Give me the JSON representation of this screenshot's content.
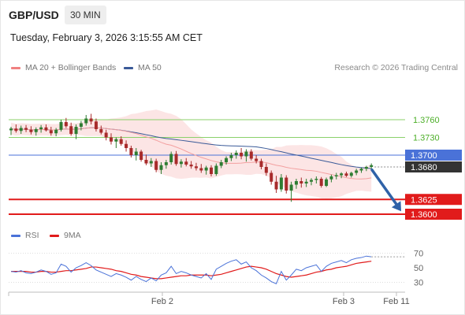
{
  "header": {
    "symbol": "GBP/USD",
    "timeframe": "30 MIN",
    "datetime": "Tuesday, February 3, 2026 3:15:55 AM CET",
    "credit": "Research © 2026 Trading Central"
  },
  "legend": {
    "main": [
      {
        "label": "MA 20 + Bollinger Bands",
        "color": "#f08080"
      },
      {
        "label": "MA 50",
        "color": "#3a5a98"
      }
    ],
    "rsi": [
      {
        "label": "RSI",
        "color": "#4a72d8"
      },
      {
        "label": "9MA",
        "color": "#e11b1b"
      }
    ]
  },
  "colors": {
    "bull": "#2e7d32",
    "bear": "#a82b2b",
    "green_level": "#8bd16a",
    "blue_level": "#4a72d8",
    "red_level": "#e11b1b",
    "bb_fill": "#fbe0e0",
    "ma20": "#f3a0a0",
    "ma50": "#3a5a98",
    "arrow": "#2f62a8"
  },
  "chart_data": [
    {
      "type": "candlestick",
      "title": "GBP/USD 30 MIN",
      "xlabel": "",
      "ylabel": "",
      "x_ticks": [
        "Feb 2",
        "Feb 3",
        "Feb 11"
      ],
      "ylim": [
        1.357,
        1.381
      ],
      "levels": [
        {
          "value": 1.376,
          "label": "1.3760",
          "kind": "resistance",
          "style": "green"
        },
        {
          "value": 1.373,
          "label": "1.3730",
          "kind": "resistance",
          "style": "green"
        },
        {
          "value": 1.37,
          "label": "1.3700",
          "kind": "pivot",
          "style": "blue"
        },
        {
          "value": 1.3625,
          "label": "1.3625",
          "kind": "support",
          "style": "red"
        },
        {
          "value": 1.36,
          "label": "1.3600",
          "kind": "support",
          "style": "red"
        }
      ],
      "last_price": {
        "value": 1.368,
        "label": "1.3680"
      },
      "forecast": {
        "from": 1.3675,
        "to": 1.3605,
        "direction": "down"
      },
      "candles": [
        [
          1.3742,
          1.3748,
          1.3734,
          1.3745
        ],
        [
          1.3745,
          1.3752,
          1.3738,
          1.3741
        ],
        [
          1.3741,
          1.375,
          1.3736,
          1.3746
        ],
        [
          1.3746,
          1.3751,
          1.3739,
          1.3743
        ],
        [
          1.3743,
          1.3749,
          1.3735,
          1.3739
        ],
        [
          1.3739,
          1.3747,
          1.3733,
          1.3744
        ],
        [
          1.3744,
          1.3751,
          1.3738,
          1.3747
        ],
        [
          1.3747,
          1.3752,
          1.374,
          1.3742
        ],
        [
          1.3742,
          1.3748,
          1.3733,
          1.3737
        ],
        [
          1.3737,
          1.3746,
          1.3732,
          1.3743
        ],
        [
          1.3743,
          1.376,
          1.374,
          1.3756
        ],
        [
          1.3756,
          1.3763,
          1.3746,
          1.3749
        ],
        [
          1.3749,
          1.3755,
          1.3733,
          1.3736
        ],
        [
          1.3736,
          1.3752,
          1.3727,
          1.3748
        ],
        [
          1.3748,
          1.3758,
          1.3742,
          1.3754
        ],
        [
          1.3754,
          1.3768,
          1.375,
          1.3762
        ],
        [
          1.3762,
          1.377,
          1.3752,
          1.3757
        ],
        [
          1.3757,
          1.3762,
          1.374,
          1.3744
        ],
        [
          1.3744,
          1.375,
          1.3735,
          1.3738
        ],
        [
          1.3738,
          1.3743,
          1.3725,
          1.373
        ],
        [
          1.373,
          1.3737,
          1.3718,
          1.3723
        ],
        [
          1.3723,
          1.373,
          1.3712,
          1.3727
        ],
        [
          1.3727,
          1.3732,
          1.3716,
          1.3719
        ],
        [
          1.3719,
          1.3725,
          1.3706,
          1.3712
        ],
        [
          1.3712,
          1.3716,
          1.3696,
          1.37
        ],
        [
          1.37,
          1.3712,
          1.3691,
          1.3706
        ],
        [
          1.3706,
          1.3709,
          1.3689,
          1.3692
        ],
        [
          1.3692,
          1.3701,
          1.3683,
          1.3686
        ],
        [
          1.3686,
          1.3695,
          1.368,
          1.369
        ],
        [
          1.369,
          1.3694,
          1.3671,
          1.3675
        ],
        [
          1.3675,
          1.3688,
          1.3668,
          1.3683
        ],
        [
          1.3683,
          1.3692,
          1.3677,
          1.3688
        ],
        [
          1.3688,
          1.3706,
          1.3684,
          1.3702
        ],
        [
          1.3702,
          1.3707,
          1.3682,
          1.3685
        ],
        [
          1.3685,
          1.3693,
          1.3679,
          1.3689
        ],
        [
          1.3689,
          1.3695,
          1.3681,
          1.3684
        ],
        [
          1.3684,
          1.369,
          1.3677,
          1.3681
        ],
        [
          1.3681,
          1.3687,
          1.3674,
          1.3678
        ],
        [
          1.3678,
          1.3685,
          1.367,
          1.3674
        ],
        [
          1.3674,
          1.3682,
          1.3667,
          1.3679
        ],
        [
          1.3679,
          1.3683,
          1.3664,
          1.3668
        ],
        [
          1.3668,
          1.3686,
          1.3665,
          1.3682
        ],
        [
          1.3682,
          1.3692,
          1.3678,
          1.3688
        ],
        [
          1.3688,
          1.3698,
          1.3684,
          1.3695
        ],
        [
          1.3695,
          1.3704,
          1.369,
          1.37
        ],
        [
          1.37,
          1.3708,
          1.3694,
          1.3704
        ],
        [
          1.3704,
          1.3712,
          1.3693,
          1.3698
        ],
        [
          1.3698,
          1.371,
          1.3689,
          1.3706
        ],
        [
          1.3706,
          1.371,
          1.3691,
          1.3694
        ],
        [
          1.3694,
          1.37,
          1.3686,
          1.369
        ],
        [
          1.369,
          1.3694,
          1.3676,
          1.368
        ],
        [
          1.368,
          1.3686,
          1.3665,
          1.367
        ],
        [
          1.367,
          1.3674,
          1.365,
          1.3655
        ],
        [
          1.3655,
          1.3665,
          1.3636,
          1.3642
        ],
        [
          1.3642,
          1.3668,
          1.3638,
          1.3662
        ],
        [
          1.3662,
          1.3666,
          1.3635,
          1.364
        ],
        [
          1.364,
          1.3655,
          1.3621,
          1.365
        ],
        [
          1.365,
          1.366,
          1.3643,
          1.3656
        ],
        [
          1.3656,
          1.3662,
          1.3645,
          1.3652
        ],
        [
          1.3652,
          1.366,
          1.3646,
          1.3655
        ],
        [
          1.3655,
          1.3661,
          1.3649,
          1.3658
        ],
        [
          1.3658,
          1.3664,
          1.3652,
          1.366
        ],
        [
          1.366,
          1.3663,
          1.3645,
          1.3648
        ],
        [
          1.3648,
          1.3662,
          1.3646,
          1.3659
        ],
        [
          1.3659,
          1.3667,
          1.3654,
          1.3664
        ],
        [
          1.3664,
          1.367,
          1.3659,
          1.3666
        ],
        [
          1.3666,
          1.3671,
          1.3661,
          1.3669
        ],
        [
          1.3669,
          1.3672,
          1.3663,
          1.3665
        ],
        [
          1.3665,
          1.3672,
          1.3662,
          1.367
        ],
        [
          1.367,
          1.3677,
          1.3666,
          1.3674
        ],
        [
          1.3674,
          1.3679,
          1.367,
          1.3677
        ],
        [
          1.3677,
          1.3682,
          1.3673,
          1.368
        ],
        [
          1.368,
          1.3686,
          1.3677,
          1.3683
        ]
      ]
    },
    {
      "type": "line",
      "title": "RSI",
      "ylim": [
        20,
        80
      ],
      "y_ticks": [
        70,
        50,
        30
      ],
      "series": [
        {
          "name": "RSI",
          "values": [
            45,
            44,
            46,
            43,
            42,
            44,
            47,
            45,
            41,
            43,
            55,
            52,
            44,
            50,
            53,
            57,
            53,
            47,
            44,
            41,
            38,
            42,
            40,
            37,
            33,
            38,
            34,
            31,
            36,
            32,
            40,
            43,
            52,
            42,
            45,
            43,
            40,
            38,
            36,
            42,
            34,
            48,
            52,
            56,
            59,
            61,
            55,
            58,
            50,
            46,
            40,
            36,
            31,
            28,
            45,
            33,
            40,
            48,
            46,
            50,
            52,
            54,
            45,
            52,
            56,
            58,
            60,
            57,
            61,
            63,
            64,
            66,
            65
          ]
        },
        {
          "name": "9MA",
          "values": [
            45,
            45,
            45,
            45,
            44,
            44,
            45,
            45,
            44,
            44,
            45,
            46,
            46,
            47,
            48,
            49,
            51,
            51,
            50,
            49,
            48,
            46,
            45,
            43,
            41,
            40,
            38,
            37,
            36,
            35,
            35,
            36,
            37,
            38,
            39,
            39,
            40,
            40,
            40,
            40,
            39,
            40,
            41,
            43,
            45,
            47,
            49,
            51,
            52,
            51,
            50,
            48,
            45,
            42,
            40,
            38,
            37,
            38,
            39,
            40,
            42,
            44,
            45,
            47,
            48,
            50,
            51,
            52,
            54,
            56,
            57,
            58,
            59
          ]
        }
      ]
    }
  ]
}
